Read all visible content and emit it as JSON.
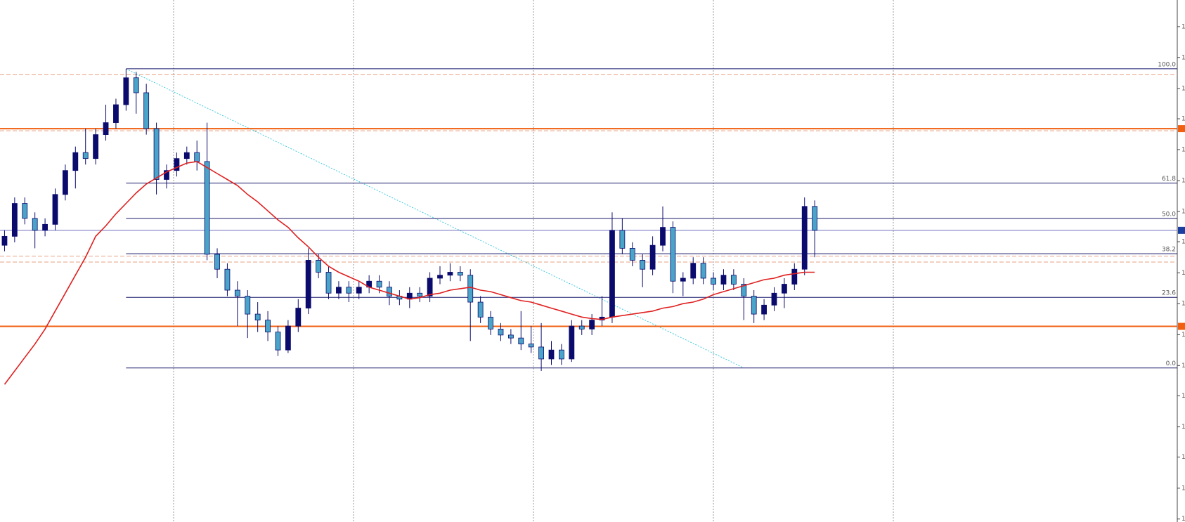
{
  "chart_data": {
    "type": "candlestick",
    "ylim": [
      -51.5,
      123
    ],
    "yticks": [
      {
        "value": 114.1,
        "label": "1"
      },
      {
        "value": 103.8,
        "label": "1"
      },
      {
        "value": 93.4,
        "label": "1"
      },
      {
        "value": 83.3,
        "label": "1"
      },
      {
        "value": 73.0,
        "label": "1"
      },
      {
        "value": 62.6,
        "label": "1"
      },
      {
        "value": 52.3,
        "label": "1"
      },
      {
        "value": 42.2,
        "label": "1"
      },
      {
        "value": 31.8,
        "label": "1"
      },
      {
        "value": 21.5,
        "label": "1"
      },
      {
        "value": 11.1,
        "label": "1"
      },
      {
        "value": 0.8,
        "label": "1"
      },
      {
        "value": -9.3,
        "label": "1"
      },
      {
        "value": -19.7,
        "label": "1"
      },
      {
        "value": -29.8,
        "label": "1"
      },
      {
        "value": -40.2,
        "label": "1"
      },
      {
        "value": -50.5,
        "label": "1"
      }
    ],
    "up_color": "#0b0b6e",
    "down_color": "#4aa3c8",
    "candles": [
      [
        41,
        46,
        39,
        44
      ],
      [
        44,
        57,
        42,
        55
      ],
      [
        55,
        57,
        48,
        50
      ],
      [
        50,
        52,
        40,
        46
      ],
      [
        46,
        50,
        44,
        48
      ],
      [
        48,
        60,
        46,
        58
      ],
      [
        58,
        68,
        56,
        66
      ],
      [
        66,
        74,
        60,
        72
      ],
      [
        72,
        80,
        68,
        70
      ],
      [
        70,
        80,
        68,
        78
      ],
      [
        78,
        88,
        76,
        82
      ],
      [
        82,
        90,
        80,
        88
      ],
      [
        88,
        100,
        86,
        97
      ],
      [
        97,
        99,
        85,
        92
      ],
      [
        92,
        95,
        78,
        80
      ],
      [
        80,
        82,
        58,
        63
      ],
      [
        63,
        68,
        60,
        66
      ],
      [
        66,
        72,
        64,
        70
      ],
      [
        70,
        74,
        68,
        72
      ],
      [
        72,
        76,
        66,
        69
      ],
      [
        69,
        82,
        36,
        38
      ],
      [
        38,
        40,
        30,
        33
      ],
      [
        33,
        35,
        24,
        26
      ],
      [
        26,
        29,
        14,
        24
      ],
      [
        24,
        26,
        10,
        18
      ],
      [
        18,
        22,
        12,
        16
      ],
      [
        16,
        19,
        9,
        12
      ],
      [
        12,
        14,
        4,
        6
      ],
      [
        6,
        16,
        5,
        14
      ],
      [
        14,
        23,
        12,
        20
      ],
      [
        20,
        40,
        18,
        36
      ],
      [
        36,
        38,
        30,
        32
      ],
      [
        32,
        34,
        23,
        25
      ],
      [
        25,
        29,
        23,
        27
      ],
      [
        27,
        29,
        22,
        25
      ],
      [
        25,
        29,
        23,
        27
      ],
      [
        27,
        31,
        25,
        29
      ],
      [
        29,
        31,
        25,
        27
      ],
      [
        27,
        29,
        21,
        24
      ],
      [
        24,
        26,
        21,
        23
      ],
      [
        23,
        27,
        20,
        25
      ],
      [
        25,
        27,
        22,
        24
      ],
      [
        24,
        32,
        22,
        30
      ],
      [
        30,
        34,
        28,
        31
      ],
      [
        31,
        35,
        29,
        32
      ],
      [
        32,
        34,
        29,
        31
      ],
      [
        31,
        33,
        9,
        22
      ],
      [
        22,
        24,
        15,
        17
      ],
      [
        17,
        19,
        11,
        13
      ],
      [
        13,
        15,
        9,
        11
      ],
      [
        11,
        13,
        8,
        10
      ],
      [
        10,
        19,
        6,
        8
      ],
      [
        8,
        14,
        5,
        7
      ],
      [
        7,
        15,
        -1,
        3
      ],
      [
        3,
        9,
        1,
        6
      ],
      [
        6,
        8,
        1,
        3
      ],
      [
        3,
        16,
        2,
        14
      ],
      [
        14,
        16,
        11,
        13
      ],
      [
        13,
        18,
        11,
        16
      ],
      [
        16,
        24,
        14,
        17
      ],
      [
        17,
        52,
        15,
        46
      ],
      [
        46,
        50,
        38,
        40
      ],
      [
        40,
        42,
        34,
        36
      ],
      [
        36,
        38,
        27,
        33
      ],
      [
        33,
        44,
        31,
        41
      ],
      [
        41,
        54,
        39,
        47
      ],
      [
        47,
        49,
        25,
        29
      ],
      [
        29,
        32,
        24,
        30
      ],
      [
        30,
        37,
        28,
        35
      ],
      [
        35,
        37,
        28,
        30
      ],
      [
        30,
        32,
        26,
        28
      ],
      [
        28,
        33,
        26,
        31
      ],
      [
        31,
        33,
        26,
        28
      ],
      [
        28,
        30,
        16,
        24
      ],
      [
        24,
        26,
        15,
        18
      ],
      [
        18,
        23,
        16,
        21
      ],
      [
        21,
        27,
        19,
        25
      ],
      [
        25,
        30,
        20,
        28
      ],
      [
        28,
        35,
        26,
        33
      ],
      [
        33,
        57,
        31,
        54
      ],
      [
        54,
        56,
        37,
        46
      ]
    ],
    "ma": {
      "color": "#e02020",
      "values": [
        -5.5,
        -1,
        3.5,
        8,
        13,
        19,
        25,
        31,
        37,
        44,
        47.5,
        51.5,
        55,
        58.5,
        61.5,
        63.5,
        65.5,
        67,
        68.5,
        69,
        67,
        65,
        63,
        61,
        58,
        55.5,
        52.5,
        49.5,
        47,
        43.5,
        40.5,
        37,
        34,
        32,
        30.5,
        29,
        27,
        26,
        25,
        24,
        23,
        23.5,
        24.5,
        25,
        26,
        26.5,
        27,
        26,
        25.5,
        24.5,
        23.5,
        22.5,
        22,
        21,
        20,
        19,
        18,
        17,
        16.5,
        16.2,
        17,
        17.5,
        18,
        18.5,
        19,
        20,
        20.5,
        21.5,
        22,
        23,
        24.5,
        25.5,
        26.5,
        27.5,
        28.5,
        29.5,
        30,
        31,
        31.5,
        32,
        32
      ]
    },
    "fib_color": "#1a1a6e",
    "fib_levels": [
      {
        "value": 100,
        "label": "100.0"
      },
      61.8,
      {
        "value": 50,
        "label": "50.0"
      },
      38.2,
      23.6,
      {
        "value": 0,
        "label": "0.0"
      }
    ],
    "hlines": [
      {
        "value": 80,
        "color": "#f06010"
      },
      {
        "value": 13.9,
        "color": "#f06010"
      }
    ],
    "dashed_lines": [
      {
        "value": 98,
        "color": "#e8a080"
      },
      {
        "value": 79.3,
        "color": "#e8a080"
      },
      {
        "value": 37.4,
        "color": "#e8a080"
      },
      {
        "value": 35.4,
        "color": "#e8a080"
      }
    ],
    "price_line": {
      "value": 46,
      "color": "#7070c0"
    }
  }
}
